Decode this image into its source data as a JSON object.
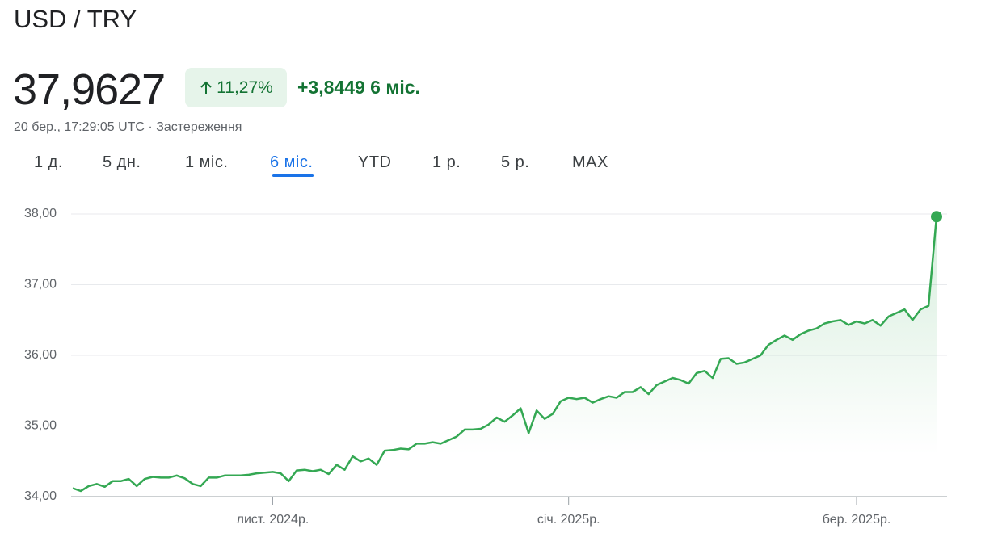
{
  "header": {
    "title": "USD / TRY"
  },
  "quote": {
    "price": "37,9627",
    "change_percent": "11,27%",
    "change_abs": "+3,8449",
    "period": "6 міс.",
    "timestamp": "20 бер., 17:29:05 UTC",
    "separator": "·",
    "disclaimer": "Застереження"
  },
  "tabs": [
    "1 д.",
    "5 дн.",
    "1 міс.",
    "6 міс.",
    "YTD",
    "1 р.",
    "5 р.",
    "MAX"
  ],
  "active_tab": 3,
  "chart_data": {
    "type": "line",
    "categories": [
      null,
      null,
      null,
      null,
      null,
      null,
      null,
      null,
      null,
      null,
      null,
      null,
      null,
      null,
      null,
      null,
      null,
      null,
      null,
      null,
      null,
      null,
      null,
      null,
      null,
      "лист. 2024р.",
      null,
      null,
      null,
      null,
      null,
      null,
      null,
      null,
      null,
      null,
      null,
      null,
      null,
      null,
      null,
      null,
      null,
      null,
      null,
      null,
      null,
      null,
      null,
      null,
      null,
      null,
      null,
      null,
      null,
      null,
      null,
      null,
      null,
      null,
      null,
      null,
      "січ. 2025р.",
      null,
      null,
      null,
      null,
      null,
      null,
      null,
      null,
      null,
      null,
      null,
      null,
      null,
      null,
      null,
      null,
      null,
      null,
      null,
      null,
      null,
      null,
      null,
      null,
      null,
      null,
      null,
      null,
      null,
      null,
      null,
      null,
      null,
      null,
      null,
      "бер. 2025р.",
      null,
      null,
      null,
      null,
      null,
      null,
      null,
      null,
      null,
      null
    ],
    "series": [
      {
        "name": "USD / TRY",
        "color": "#34a853",
        "values": [
          34.12,
          34.08,
          34.15,
          34.18,
          34.14,
          34.22,
          34.22,
          34.25,
          34.15,
          34.25,
          34.28,
          34.27,
          34.27,
          34.3,
          34.26,
          34.18,
          34.15,
          34.27,
          34.27,
          34.3,
          34.3,
          34.3,
          34.31,
          34.33,
          34.34,
          34.35,
          34.33,
          34.22,
          34.37,
          34.38,
          34.36,
          34.38,
          34.32,
          34.45,
          34.38,
          34.57,
          34.5,
          34.54,
          34.45,
          34.65,
          34.66,
          34.68,
          34.67,
          34.75,
          34.75,
          34.77,
          34.75,
          34.8,
          34.85,
          34.95,
          34.95,
          34.96,
          35.02,
          35.12,
          35.06,
          35.15,
          35.25,
          34.9,
          35.22,
          35.1,
          35.17,
          35.35,
          35.4,
          35.38,
          35.4,
          35.33,
          35.38,
          35.42,
          35.4,
          35.48,
          35.48,
          35.55,
          35.45,
          35.58,
          35.63,
          35.68,
          35.65,
          35.6,
          35.75,
          35.78,
          35.68,
          35.95,
          35.96,
          35.88,
          35.9,
          35.95,
          36.0,
          36.15,
          36.22,
          36.28,
          36.22,
          36.3,
          36.35,
          36.38,
          36.45,
          36.48,
          36.5,
          36.43,
          36.48,
          36.45,
          36.5,
          36.42,
          36.55,
          36.6,
          36.65,
          36.5,
          36.65,
          36.7,
          37.9627
        ]
      }
    ],
    "ylim": [
      34,
      38
    ],
    "yticks": [
      {
        "value": 34,
        "label": "34,00"
      },
      {
        "value": 35,
        "label": "35,00"
      },
      {
        "value": 36,
        "label": "36,00"
      },
      {
        "value": 37,
        "label": "37,00"
      },
      {
        "value": 38,
        "label": "38,00"
      }
    ],
    "grid": true
  }
}
